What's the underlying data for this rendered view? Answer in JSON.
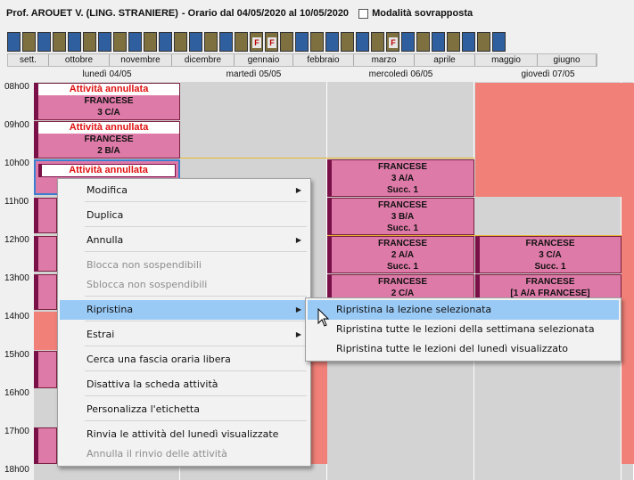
{
  "header": {
    "teacher": "Prof. AROUET V. (LING. STRANIERE)",
    "range": "- Orario dal 04/05/2020 al 10/05/2020",
    "overlay_label": "Modalità sovrapposta",
    "overlay_checked": false
  },
  "week_strip": {
    "weeks": [
      "b",
      "o",
      "b",
      "o",
      "b",
      "o",
      "b",
      "o",
      "b",
      "o",
      "b",
      "o",
      "b",
      "o",
      "b",
      "o",
      "f",
      "f",
      "o",
      "b",
      "o",
      "b",
      "o",
      "b",
      "o",
      "f",
      "b",
      "o",
      "b",
      "o",
      "b",
      "o",
      "b",
      "o",
      "b",
      "o",
      "y",
      "b",
      "o",
      "b",
      "o",
      "b",
      "o",
      "b",
      "o",
      "b",
      "o"
    ],
    "flag_label": "F",
    "months": [
      "sett.",
      "ottobre",
      "novembre",
      "dicembre",
      "gennaio",
      "febbraio",
      "marzo",
      "aprile",
      "maggio",
      "giugno"
    ]
  },
  "days": [
    "lunedì 04/05",
    "martedì 05/05",
    "mercoledì 06/05",
    "giovedì 07/05"
  ],
  "hours": [
    "08h00",
    "09h00",
    "10h00",
    "11h00",
    "12h00",
    "13h00",
    "14h00",
    "15h00",
    "16h00",
    "17h00",
    "18h00"
  ],
  "lessons": {
    "mon_1": {
      "status": "Attività annullata",
      "subject": "FRANCESE",
      "class": "3 C/A"
    },
    "mon_2": {
      "status": "Attività annullata",
      "subject": "FRANCESE",
      "class": "2 B/A"
    },
    "mon_3": {
      "status": "Attività annullata"
    },
    "wed_1": {
      "subject": "FRANCESE",
      "class": "3 A/A",
      "note": "Succ. 1"
    },
    "wed_2": {
      "subject": "FRANCESE",
      "class": "3 B/A",
      "note": "Succ. 1"
    },
    "wed_3": {
      "subject": "FRANCESE",
      "class": "2 A/A",
      "note": "Succ. 1"
    },
    "wed_4": {
      "subject": "FRANCESE",
      "class": "2 C/A"
    },
    "thu_1": {
      "subject": "FRANCESE",
      "class": "3 C/A",
      "note": "Succ. 1"
    },
    "thu_2": {
      "subject": "FRANCESE",
      "class": "[1 A/A  FRANCESE]"
    }
  },
  "context_menu": {
    "items": [
      {
        "label": "Modifica",
        "submenu": true,
        "disabled": false
      },
      {
        "label": "Duplica",
        "submenu": false,
        "disabled": false
      },
      {
        "label": "Annulla",
        "submenu": true,
        "disabled": false
      },
      {
        "label": "Blocca non sospendibili",
        "submenu": false,
        "disabled": true
      },
      {
        "label": "Sblocca non sospendibili",
        "submenu": false,
        "disabled": true
      },
      {
        "label": "Ripristina",
        "submenu": true,
        "disabled": false,
        "selected": true
      },
      {
        "label": "Estrai",
        "submenu": true,
        "disabled": false
      },
      {
        "label": "Cerca una fascia oraria libera",
        "submenu": false,
        "disabled": false
      },
      {
        "label": "Disattiva la scheda attività",
        "submenu": false,
        "disabled": false
      },
      {
        "label": "Personalizza l'etichetta",
        "submenu": false,
        "disabled": false
      },
      {
        "label": "Rinvia le attività del lunedì visualizzate",
        "submenu": false,
        "disabled": false
      },
      {
        "label": "Annulla il rinvio delle attività",
        "submenu": false,
        "disabled": true
      }
    ]
  },
  "submenu": {
    "items": [
      {
        "label": "Ripristina la lezione selezionata",
        "selected": true
      },
      {
        "label": "Ripristina tutte le lezioni della settimana selezionata"
      },
      {
        "label": "Ripristina tutte le lezioni del lunedì visualizzato"
      }
    ]
  },
  "colors": {
    "lesson": "#de7aa8",
    "lesson_border": "#7a1048",
    "cancelled_text": "#e01010",
    "unavailable": "#f08078",
    "menu_highlight": "#99c9f5",
    "week_blue": "#2f5f9f",
    "week_olive": "#7f7040",
    "week_current": "#e8b830"
  }
}
